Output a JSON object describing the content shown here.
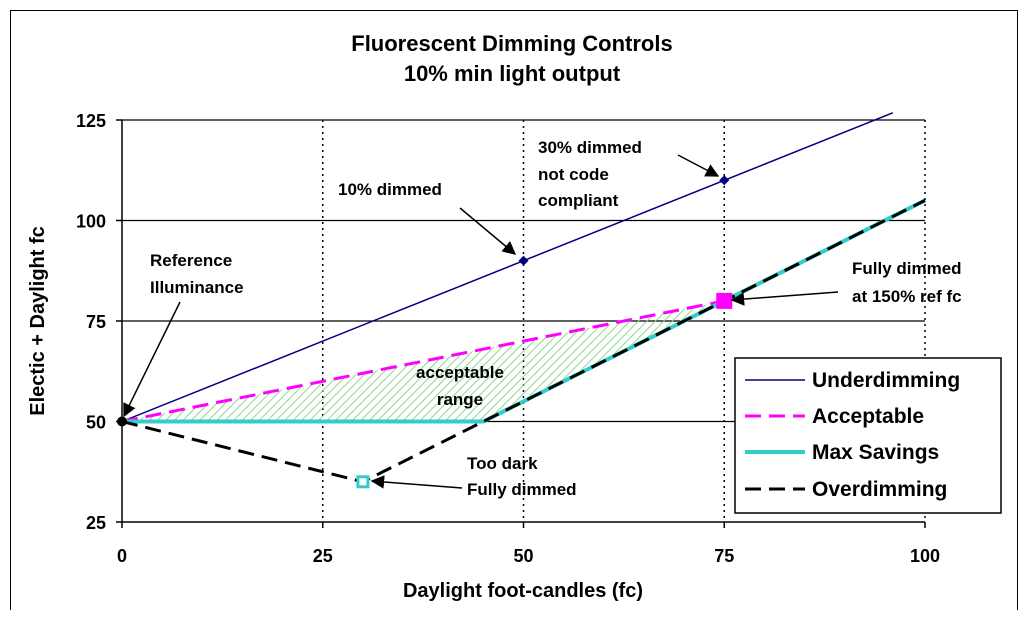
{
  "chart_data": {
    "type": "line",
    "title": [
      "Fluorescent Dimming Controls",
      "10% min light output"
    ],
    "xlabel": "Daylight foot-candles (fc)",
    "ylabel": "Electic + Daylight fc",
    "xlim": [
      0,
      100
    ],
    "ylim": [
      25,
      125
    ],
    "xticks": [
      0,
      25,
      50,
      75,
      100
    ],
    "yticks": [
      25,
      50,
      75,
      100,
      125
    ],
    "grid": {
      "horizontal": "solid",
      "vertical": "dotted"
    },
    "legend_position": "bottom-right",
    "series": [
      {
        "name": "Underdimming",
        "color": "#00007f",
        "style": "solid",
        "x": [
          0,
          96
        ],
        "y": [
          50,
          126.8
        ],
        "markers": [
          {
            "x": 50,
            "y": 90
          },
          {
            "x": 75,
            "y": 110
          }
        ]
      },
      {
        "name": "Acceptable",
        "color": "#ff00ff",
        "style": "dashed",
        "x": [
          0,
          75
        ],
        "y": [
          50,
          80
        ],
        "markers": [
          {
            "x": 75,
            "y": 80
          }
        ]
      },
      {
        "name": "Max Savings",
        "color": "#33cccc",
        "style": "solid",
        "x": [
          0,
          45,
          100
        ],
        "y": [
          50,
          50,
          105
        ]
      },
      {
        "name": "Overdimming",
        "color": "#000000",
        "style": "dashed",
        "x": [
          0,
          30,
          100
        ],
        "y": [
          50,
          35,
          105
        ],
        "markers": [
          {
            "x": 30,
            "y": 35
          }
        ]
      }
    ],
    "shaded_region": {
      "color": "#66cc66",
      "polygon": [
        [
          0,
          50
        ],
        [
          45,
          50
        ],
        [
          75,
          80
        ]
      ]
    },
    "annotations": [
      {
        "text": [
          "Reference",
          "Illuminance"
        ],
        "target": [
          0,
          50
        ]
      },
      {
        "text": [
          "10% dimmed"
        ],
        "target": [
          50,
          90
        ]
      },
      {
        "text": [
          "30% dimmed",
          "not code",
          "compliant"
        ],
        "target": [
          75,
          110
        ]
      },
      {
        "text": [
          "Fully dimmed",
          "at 150% ref fc"
        ],
        "target": [
          75,
          80
        ]
      },
      {
        "text": [
          "acceptable",
          "range"
        ],
        "target": null
      },
      {
        "text": [
          "Too dark",
          "Fully dimmed"
        ],
        "target": [
          30,
          35
        ]
      }
    ]
  }
}
